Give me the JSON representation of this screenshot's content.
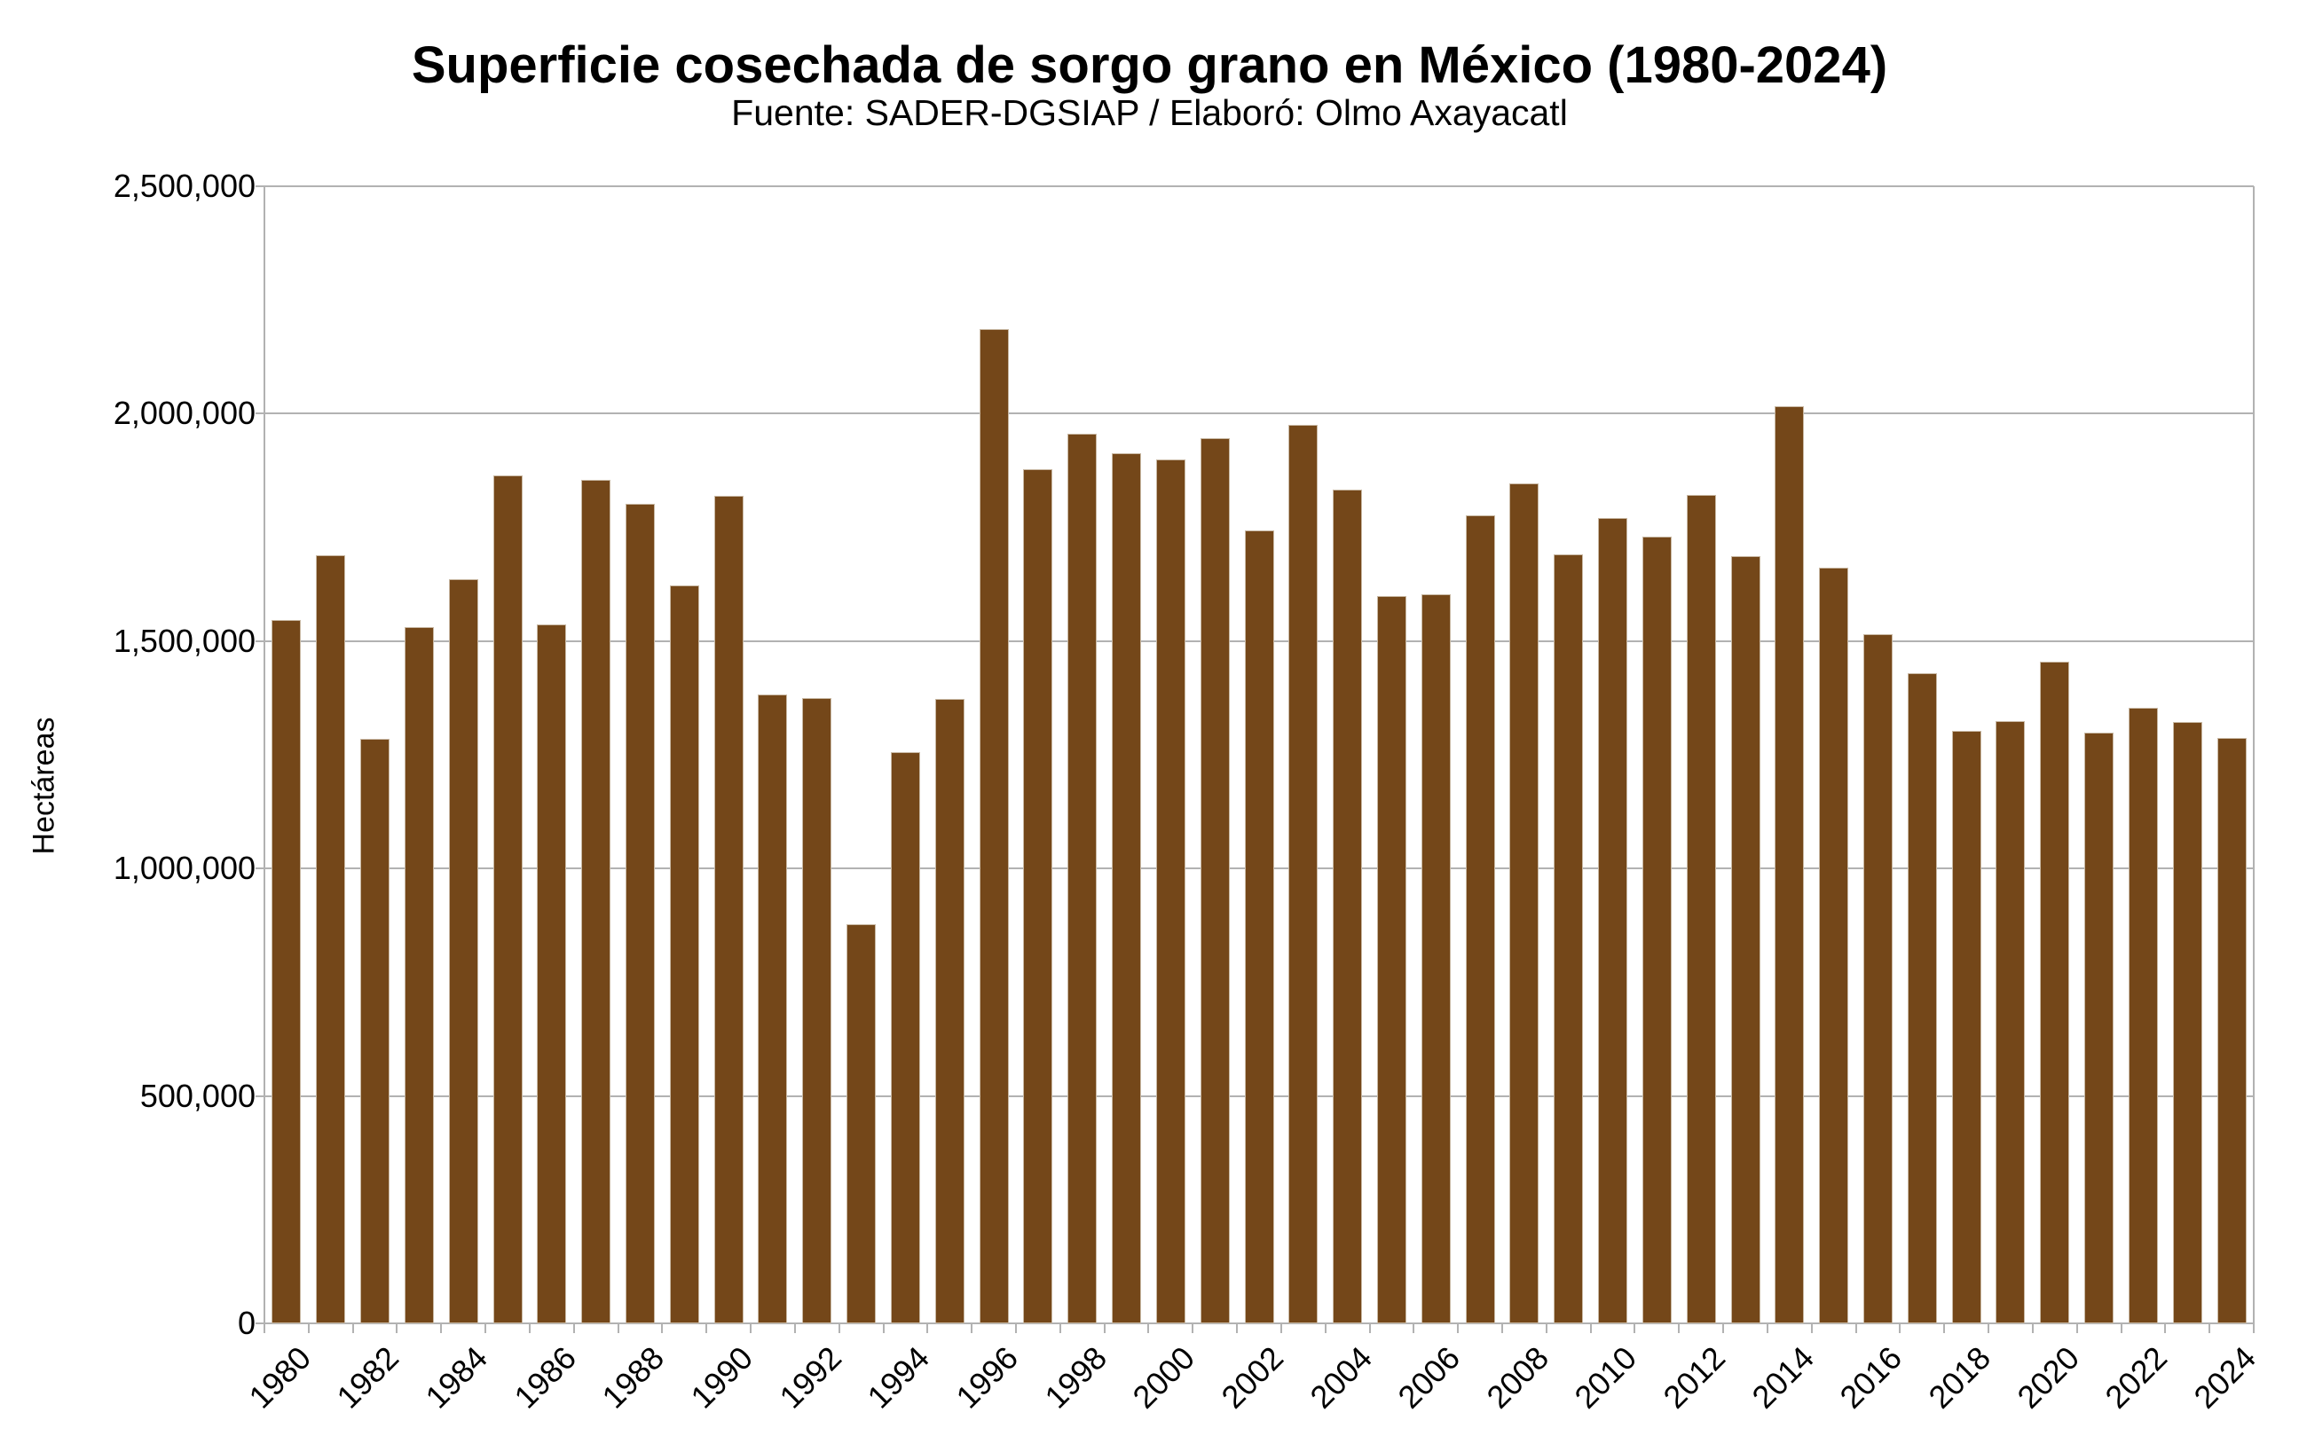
{
  "chart": {
    "title": "Superficie cosechada de sorgo grano en México (1980-2024)",
    "subtitle": "Fuente: SADER-DGSIAP / Elaboró: Olmo Axayacatl",
    "ylabel": "Hectáreas"
  },
  "chart_data": {
    "type": "bar",
    "title": "Superficie cosechada de sorgo grano en México (1980-2024)",
    "subtitle": "Fuente: SADER-DGSIAP / Elaboró: Olmo Axayacatl",
    "xlabel": "",
    "ylabel": "Hectáreas",
    "ylim": [
      0,
      2500000
    ],
    "ytick_step": 500000,
    "ytick_labels": [
      "0",
      "500,000",
      "1,000,000",
      "1,500,000",
      "2,000,000",
      "2,500,000"
    ],
    "grid": "horizontal-only",
    "legend": "none",
    "xtick_label_every": 2,
    "xtick_rotation_deg": 45,
    "bar_color": "#744719",
    "bar_border_color": "#c9b9a4",
    "grid_color": "#b2b2b2",
    "categories": [
      "1980",
      "1981",
      "1982",
      "1983",
      "1984",
      "1985",
      "1986",
      "1987",
      "1988",
      "1989",
      "1990",
      "1991",
      "1992",
      "1993",
      "1994",
      "1995",
      "1996",
      "1997",
      "1998",
      "1999",
      "2000",
      "2001",
      "2002",
      "2003",
      "2004",
      "2005",
      "2006",
      "2007",
      "2008",
      "2009",
      "2010",
      "2011",
      "2012",
      "2013",
      "2014",
      "2015",
      "2016",
      "2017",
      "2018",
      "2019",
      "2020",
      "2021",
      "2022",
      "2023",
      "2024"
    ],
    "values": [
      1546000,
      1688000,
      1286000,
      1530000,
      1637000,
      1864000,
      1537000,
      1855000,
      1801000,
      1622000,
      1820000,
      1382000,
      1374000,
      878000,
      1255000,
      1373000,
      2187000,
      1878000,
      1955000,
      1914000,
      1900000,
      1946000,
      1744000,
      1975000,
      1834000,
      1600000,
      1602000,
      1777000,
      1847000,
      1691000,
      1770000,
      1730000,
      1822000,
      1687000,
      2016000,
      1662000,
      1515000,
      1430000,
      1302000,
      1325000,
      1455000,
      1299000,
      1353000,
      1322000,
      1288000
    ]
  }
}
